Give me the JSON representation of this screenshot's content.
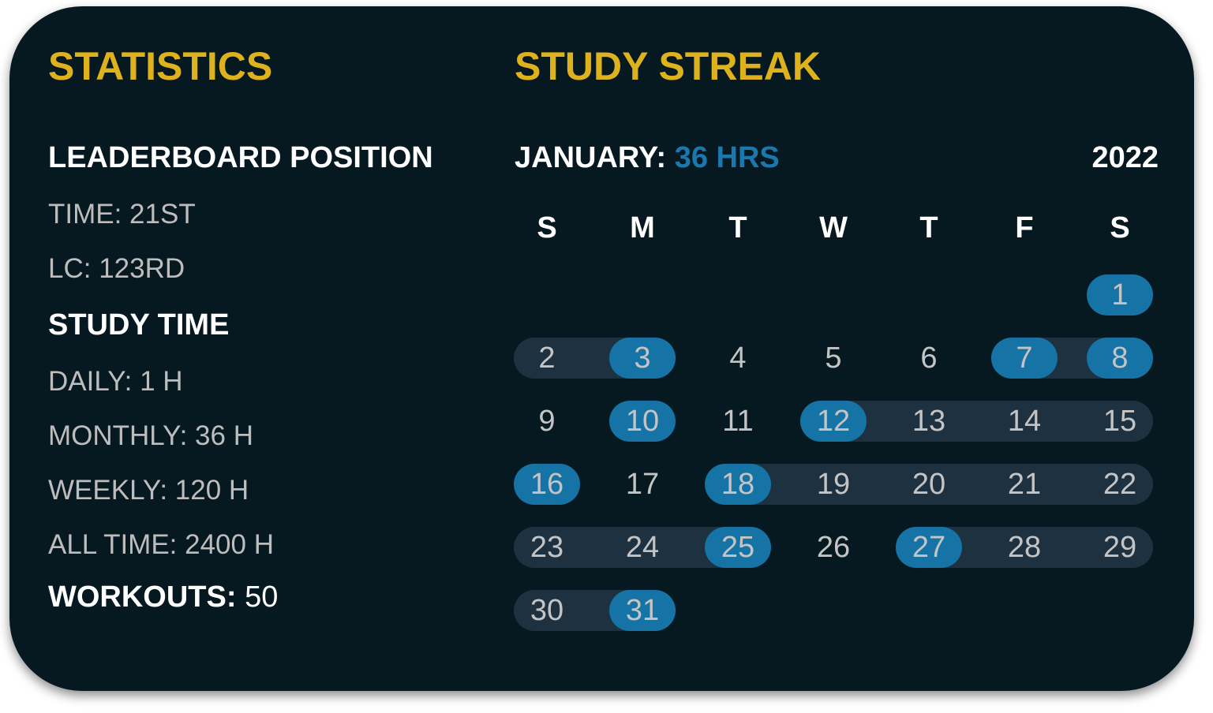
{
  "statistics": {
    "title": "STATISTICS",
    "leaderboard_heading": "LEADERBOARD POSITION",
    "time": "TIME: 21ST",
    "lc": "LC: 123RD",
    "study_time_heading": "STUDY TIME",
    "daily": "DAILY: 1 H",
    "monthly": "MONTHLY: 36 H",
    "weekly": "WEEKLY: 120 H",
    "all_time": "ALL TIME: 2400 H",
    "workouts_label": "WORKOUTS:",
    "workouts_value": "50"
  },
  "streak": {
    "title": "STUDY STREAK",
    "month_label": "JANUARY:",
    "month_hours": "36 HRS",
    "year": "2022",
    "weekdays": [
      "S",
      "M",
      "T",
      "W",
      "T",
      "F",
      "S"
    ],
    "first_weekday_index": 6,
    "days_in_month": 31,
    "study_days": [
      1,
      3,
      7,
      8,
      10,
      12,
      16,
      18,
      25,
      27,
      31
    ],
    "streak_ranges": [
      [
        2,
        3
      ],
      [
        7,
        8
      ],
      [
        12,
        15
      ],
      [
        18,
        22
      ],
      [
        23,
        25
      ],
      [
        27,
        29
      ],
      [
        30,
        31
      ]
    ],
    "colors": {
      "study_day": "#1673A5",
      "streak_band": "#1D3141",
      "accent": "#DDB21D",
      "hours": "#1A78AE"
    }
  }
}
